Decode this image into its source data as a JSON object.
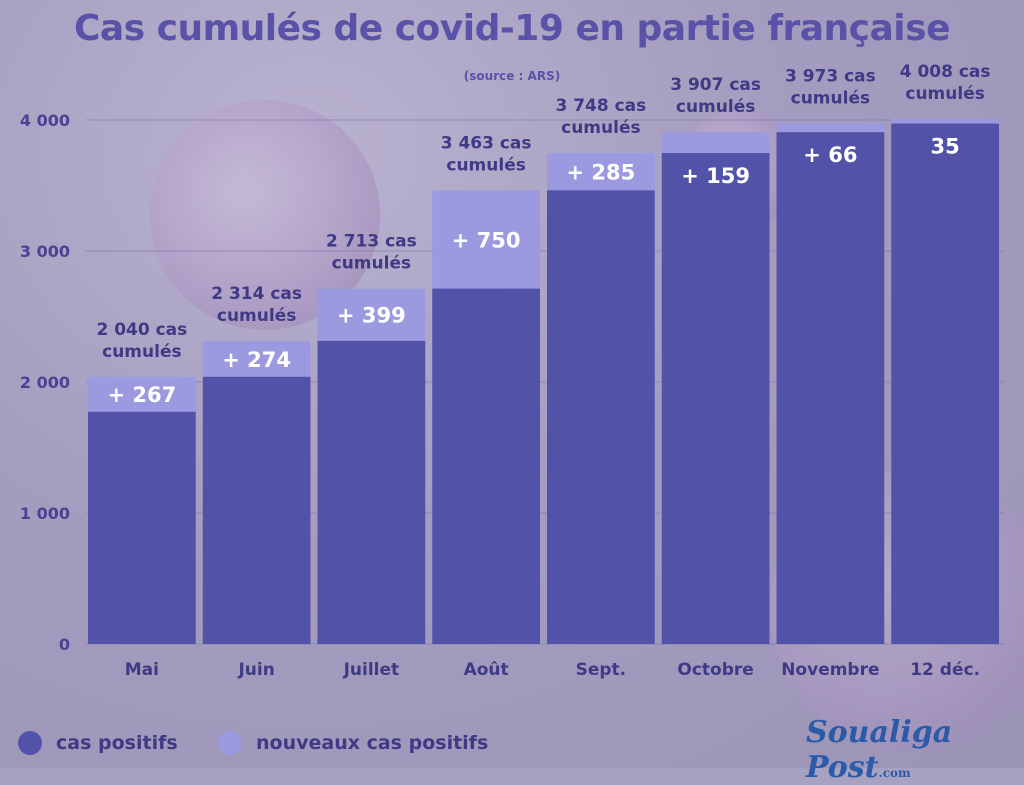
{
  "title": "Cas cumulés de covid-19 en partie française",
  "source": "(source : ARS)",
  "colors": {
    "base": "#5252a8",
    "new": "#9b9ae0",
    "text": "#3f3a85"
  },
  "legend": [
    {
      "label": "cas positifs",
      "color": "#5252a8"
    },
    {
      "label": "nouveaux cas positifs",
      "color": "#9b9ae0"
    }
  ],
  "logo": {
    "name": "Soualiga Post",
    "suffix": ".com"
  },
  "chart_data": {
    "type": "bar",
    "stacked": true,
    "title": "Cas cumulés de covid-19 en partie française",
    "ylim": [
      0,
      4000
    ],
    "yticks": [
      "0",
      "1 000",
      "2 000",
      "3 000",
      "4 000"
    ],
    "ytick_values": [
      0,
      1000,
      2000,
      3000,
      4000
    ],
    "categories": [
      "Mai",
      "Juin",
      "Juillet",
      "Août",
      "Sept.",
      "Octobre",
      "Novembre",
      "12 déc."
    ],
    "series": [
      {
        "name": "cas positifs",
        "values": [
          1773,
          2040,
          2314,
          2713,
          3463,
          3748,
          3907,
          3973
        ]
      },
      {
        "name": "nouveaux cas positifs",
        "values": [
          267,
          274,
          399,
          750,
          285,
          159,
          66,
          35
        ]
      }
    ],
    "totals": [
      2040,
      2314,
      2713,
      3463,
      3748,
      3907,
      3973,
      4008
    ],
    "increment_labels": [
      "+ 267",
      "+ 274",
      "+ 399",
      "+ 750",
      "+ 285",
      "+ 159",
      "+ 66",
      "35"
    ],
    "total_labels": [
      [
        "2 040 cas",
        "cumulés"
      ],
      [
        "2 314 cas",
        "cumulés"
      ],
      [
        "2 713 cas",
        "cumulés"
      ],
      [
        "3 463 cas",
        "cumulés"
      ],
      [
        "3 748 cas",
        "cumulés"
      ],
      [
        "3 907 cas",
        "cumulés"
      ],
      [
        "3 973 cas",
        "cumulés"
      ],
      [
        "4 008 cas",
        "cumulés"
      ]
    ],
    "grid": true,
    "legend_position": "bottom-left"
  }
}
